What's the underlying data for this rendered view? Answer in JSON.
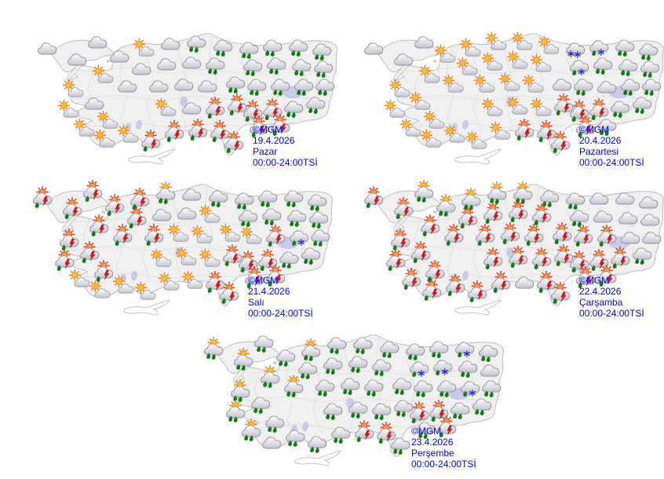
{
  "page": {
    "background": "#ffffff",
    "label_color": "#0000ff",
    "land_color": "#f1f0f1",
    "border_color": "#bdbdbd",
    "lake_color": "#c9caee",
    "rain_drop_color": "#0e7d12",
    "lightning_color": "#e31212",
    "snowflake_color": "#2b2bd0",
    "sun_color": "#ffc22a"
  },
  "icon_legend": {
    "cloud": "cloudy",
    "sun": "partly-cloudy",
    "rain": "rain-showers",
    "shower": "sunny-showers",
    "storm": "thunderstorm",
    "sleet": "rain-and-snow",
    "snow": "snow"
  },
  "maps": [
    {
      "copyright": "©MGM",
      "date": "19.4.2026",
      "day": "Pazar",
      "hours": "00:00-24:00TSİ",
      "icons": [
        [
          "cloud",
          48,
          34
        ],
        [
          "cloud",
          112,
          26
        ],
        [
          "cloud",
          86,
          48
        ],
        [
          "cloud",
          140,
          44
        ],
        [
          "sun",
          120,
          70
        ],
        [
          "cloud",
          150,
          82
        ],
        [
          "sun",
          82,
          88
        ],
        [
          "sun",
          76,
          114
        ],
        [
          "cloud",
          108,
          104
        ],
        [
          "sun",
          96,
          138
        ],
        [
          "sun",
          126,
          128
        ],
        [
          "sun",
          122,
          152
        ],
        [
          "sun",
          152,
          146
        ],
        [
          "storm",
          180,
          154
        ],
        [
          "sun",
          172,
          36
        ],
        [
          "cloud",
          205,
          28
        ],
        [
          "rain",
          238,
          28
        ],
        [
          "rain",
          272,
          33
        ],
        [
          "cloud",
          168,
          60
        ],
        [
          "cloud",
          200,
          54
        ],
        [
          "cloud",
          232,
          52
        ],
        [
          "rain",
          262,
          56
        ],
        [
          "cloud",
          190,
          82
        ],
        [
          "cloud",
          222,
          80
        ],
        [
          "cloud",
          252,
          82
        ],
        [
          "rain",
          288,
          80
        ],
        [
          "sun",
          200,
          112
        ],
        [
          "cloud",
          232,
          110
        ],
        [
          "storm",
          262,
          112
        ],
        [
          "storm",
          290,
          108
        ],
        [
          "storm",
          210,
          142
        ],
        [
          "storm",
          240,
          140
        ],
        [
          "storm",
          268,
          142
        ],
        [
          "storm",
          286,
          156
        ],
        [
          "rain",
          305,
          36
        ],
        [
          "rain",
          335,
          33
        ],
        [
          "rain",
          368,
          33
        ],
        [
          "rain",
          398,
          38
        ],
        [
          "rain",
          310,
          58
        ],
        [
          "rain",
          340,
          56
        ],
        [
          "rain",
          372,
          58
        ],
        [
          "rain",
          400,
          60
        ],
        [
          "rain",
          315,
          83
        ],
        [
          "rain",
          345,
          83
        ],
        [
          "rain",
          375,
          83
        ],
        [
          "rain",
          402,
          83
        ],
        [
          "storm",
          310,
          116
        ],
        [
          "storm",
          335,
          114
        ],
        [
          "rain",
          362,
          111
        ],
        [
          "rain",
          390,
          106
        ],
        [
          "storm",
          318,
          136
        ],
        [
          "storm",
          345,
          134
        ]
      ]
    },
    {
      "copyright": "©MGM",
      "date": "20.4.2026",
      "day": "Pazartesi",
      "hours": "00:00-24:00TSİ",
      "icons": [
        [
          "cloud",
          48,
          34
        ],
        [
          "cloud",
          112,
          26
        ],
        [
          "cloud",
          86,
          48
        ],
        [
          "sun",
          140,
          44
        ],
        [
          "sun",
          120,
          70
        ],
        [
          "sun",
          150,
          82
        ],
        [
          "sun",
          82,
          88
        ],
        [
          "sun",
          76,
          114
        ],
        [
          "sun",
          108,
          104
        ],
        [
          "sun",
          96,
          138
        ],
        [
          "sun",
          126,
          128
        ],
        [
          "sun",
          122,
          152
        ],
        [
          "sun",
          152,
          146
        ],
        [
          "sun",
          180,
          154
        ],
        [
          "sun",
          172,
          36
        ],
        [
          "sun",
          205,
          28
        ],
        [
          "sun",
          238,
          28
        ],
        [
          "sun",
          272,
          33
        ],
        [
          "sun",
          168,
          60
        ],
        [
          "sun",
          200,
          54
        ],
        [
          "sun",
          232,
          52
        ],
        [
          "sun",
          262,
          56
        ],
        [
          "sun",
          190,
          82
        ],
        [
          "sun",
          222,
          80
        ],
        [
          "sun",
          252,
          82
        ],
        [
          "cloud",
          288,
          80
        ],
        [
          "sun",
          200,
          112
        ],
        [
          "sun",
          232,
          110
        ],
        [
          "sun",
          262,
          112
        ],
        [
          "storm",
          290,
          108
        ],
        [
          "sun",
          210,
          142
        ],
        [
          "storm",
          240,
          140
        ],
        [
          "storm",
          268,
          142
        ],
        [
          "storm",
          286,
          156
        ],
        [
          "snow",
          305,
          36
        ],
        [
          "sleet",
          335,
          33
        ],
        [
          "rain",
          368,
          33
        ],
        [
          "rain",
          398,
          38
        ],
        [
          "sleet",
          310,
          58
        ],
        [
          "rain",
          340,
          56
        ],
        [
          "rain",
          372,
          58
        ],
        [
          "rain",
          400,
          60
        ],
        [
          "rain",
          315,
          83
        ],
        [
          "cloud",
          345,
          83
        ],
        [
          "rain",
          375,
          83
        ],
        [
          "rain",
          402,
          83
        ],
        [
          "storm",
          310,
          116
        ],
        [
          "storm",
          335,
          114
        ],
        [
          "rain",
          362,
          111
        ],
        [
          "rain",
          390,
          106
        ],
        [
          "storm",
          318,
          136
        ],
        [
          "rain",
          345,
          134
        ]
      ]
    },
    {
      "copyright": "©MGM",
      "date": "21.4.2026",
      "day": "Salı",
      "hours": "00:00-24:00TSİ",
      "icons": [
        [
          "storm",
          48,
          34
        ],
        [
          "storm",
          112,
          26
        ],
        [
          "storm",
          86,
          48
        ],
        [
          "storm",
          140,
          44
        ],
        [
          "storm",
          120,
          70
        ],
        [
          "storm",
          150,
          82
        ],
        [
          "storm",
          82,
          88
        ],
        [
          "storm",
          76,
          114
        ],
        [
          "storm",
          108,
          104
        ],
        [
          "sun",
          96,
          138
        ],
        [
          "storm",
          126,
          128
        ],
        [
          "sun",
          122,
          152
        ],
        [
          "sun",
          152,
          146
        ],
        [
          "sun",
          180,
          154
        ],
        [
          "storm",
          172,
          36
        ],
        [
          "shower",
          205,
          28
        ],
        [
          "cloud",
          238,
          28
        ],
        [
          "rain",
          272,
          33
        ],
        [
          "storm",
          168,
          60
        ],
        [
          "cloud",
          200,
          54
        ],
        [
          "cloud",
          232,
          52
        ],
        [
          "sun",
          262,
          56
        ],
        [
          "storm",
          190,
          82
        ],
        [
          "sun",
          222,
          80
        ],
        [
          "sun",
          252,
          82
        ],
        [
          "sun",
          288,
          80
        ],
        [
          "sun",
          200,
          112
        ],
        [
          "sun",
          232,
          110
        ],
        [
          "sun",
          262,
          112
        ],
        [
          "storm",
          290,
          108
        ],
        [
          "sun",
          210,
          142
        ],
        [
          "sun",
          240,
          140
        ],
        [
          "storm",
          268,
          142
        ],
        [
          "storm",
          286,
          156
        ],
        [
          "rain",
          305,
          36
        ],
        [
          "rain",
          335,
          33
        ],
        [
          "rain",
          368,
          33
        ],
        [
          "rain",
          398,
          38
        ],
        [
          "rain",
          310,
          58
        ],
        [
          "rain",
          340,
          56
        ],
        [
          "rain",
          372,
          58
        ],
        [
          "rain",
          400,
          60
        ],
        [
          "sun",
          315,
          83
        ],
        [
          "storm",
          345,
          83
        ],
        [
          "sleet",
          375,
          83
        ],
        [
          "rain",
          402,
          83
        ],
        [
          "storm",
          310,
          116
        ],
        [
          "storm",
          335,
          114
        ],
        [
          "rain",
          362,
          111
        ],
        [
          "rain",
          390,
          106
        ],
        [
          "storm",
          318,
          136
        ],
        [
          "storm",
          345,
          134
        ]
      ]
    },
    {
      "copyright": "©MGM",
      "date": "22.4.2026",
      "day": "Çarşamba",
      "hours": "00:00-24:00TSİ",
      "icons": [
        [
          "storm",
          48,
          34
        ],
        [
          "shower",
          112,
          26
        ],
        [
          "storm",
          86,
          48
        ],
        [
          "shower",
          140,
          44
        ],
        [
          "storm",
          120,
          70
        ],
        [
          "storm",
          150,
          82
        ],
        [
          "storm",
          82,
          88
        ],
        [
          "storm",
          76,
          114
        ],
        [
          "storm",
          108,
          104
        ],
        [
          "storm",
          96,
          138
        ],
        [
          "storm",
          126,
          128
        ],
        [
          "storm",
          122,
          152
        ],
        [
          "storm",
          152,
          146
        ],
        [
          "storm",
          180,
          154
        ],
        [
          "shower",
          172,
          36
        ],
        [
          "shower",
          205,
          28
        ],
        [
          "shower",
          238,
          28
        ],
        [
          "rain",
          272,
          33
        ],
        [
          "storm",
          168,
          60
        ],
        [
          "storm",
          200,
          54
        ],
        [
          "storm",
          232,
          52
        ],
        [
          "storm",
          262,
          56
        ],
        [
          "storm",
          190,
          82
        ],
        [
          "storm",
          222,
          80
        ],
        [
          "storm",
          252,
          82
        ],
        [
          "storm",
          288,
          80
        ],
        [
          "storm",
          200,
          112
        ],
        [
          "storm",
          232,
          110
        ],
        [
          "storm",
          262,
          112
        ],
        [
          "storm",
          290,
          108
        ],
        [
          "storm",
          210,
          142
        ],
        [
          "cloud",
          240,
          140
        ],
        [
          "storm",
          268,
          142
        ],
        [
          "storm",
          286,
          156
        ],
        [
          "rain",
          305,
          36
        ],
        [
          "cloud",
          335,
          33
        ],
        [
          "cloud",
          368,
          33
        ],
        [
          "cloud",
          398,
          38
        ],
        [
          "rain",
          310,
          58
        ],
        [
          "cloud",
          340,
          56
        ],
        [
          "cloud",
          372,
          58
        ],
        [
          "cloud",
          400,
          60
        ],
        [
          "storm",
          315,
          83
        ],
        [
          "storm",
          345,
          83
        ],
        [
          "cloud",
          375,
          83
        ],
        [
          "cloud",
          402,
          83
        ],
        [
          "storm",
          310,
          116
        ],
        [
          "storm",
          335,
          114
        ],
        [
          "storm",
          362,
          111
        ],
        [
          "rain",
          390,
          106
        ],
        [
          "storm",
          318,
          136
        ],
        [
          "storm",
          345,
          134
        ]
      ]
    },
    {
      "copyright": "©MGM",
      "date": "23.4.2026",
      "day": "Perşembe",
      "hours": "00:00-24:00TSİ",
      "icons": [
        [
          "shower",
          48,
          34
        ],
        [
          "rain",
          112,
          26
        ],
        [
          "shower",
          86,
          48
        ],
        [
          "rain",
          140,
          44
        ],
        [
          "shower",
          120,
          70
        ],
        [
          "shower",
          150,
          82
        ],
        [
          "shower",
          82,
          88
        ],
        [
          "shower",
          76,
          114
        ],
        [
          "rain",
          108,
          104
        ],
        [
          "shower",
          96,
          138
        ],
        [
          "rain",
          126,
          128
        ],
        [
          "cloud",
          122,
          152
        ],
        [
          "rain",
          152,
          146
        ],
        [
          "rain",
          180,
          154
        ],
        [
          "shower",
          172,
          36
        ],
        [
          "rain",
          205,
          28
        ],
        [
          "rain",
          238,
          28
        ],
        [
          "rain",
          272,
          33
        ],
        [
          "rain",
          168,
          60
        ],
        [
          "rain",
          200,
          54
        ],
        [
          "rain",
          232,
          52
        ],
        [
          "rain",
          262,
          56
        ],
        [
          "rain",
          190,
          82
        ],
        [
          "rain",
          222,
          80
        ],
        [
          "rain",
          252,
          82
        ],
        [
          "rain",
          288,
          80
        ],
        [
          "rain",
          200,
          112
        ],
        [
          "rain",
          232,
          110
        ],
        [
          "rain",
          262,
          112
        ],
        [
          "rain",
          290,
          108
        ],
        [
          "rain",
          210,
          142
        ],
        [
          "storm",
          240,
          140
        ],
        [
          "storm",
          268,
          142
        ],
        [
          "rain",
          286,
          156
        ],
        [
          "rain",
          305,
          36
        ],
        [
          "rain",
          335,
          33
        ],
        [
          "sleet",
          368,
          33
        ],
        [
          "rain",
          398,
          38
        ],
        [
          "sleet",
          310,
          58
        ],
        [
          "sleet",
          340,
          56
        ],
        [
          "rain",
          372,
          58
        ],
        [
          "cloud",
          400,
          60
        ],
        [
          "rain",
          315,
          83
        ],
        [
          "rain",
          345,
          83
        ],
        [
          "sleet",
          375,
          83
        ],
        [
          "rain",
          402,
          83
        ],
        [
          "storm",
          310,
          116
        ],
        [
          "storm",
          335,
          114
        ],
        [
          "rain",
          362,
          111
        ],
        [
          "rain",
          390,
          106
        ],
        [
          "rain",
          318,
          136
        ],
        [
          "storm",
          345,
          134
        ]
      ]
    }
  ]
}
